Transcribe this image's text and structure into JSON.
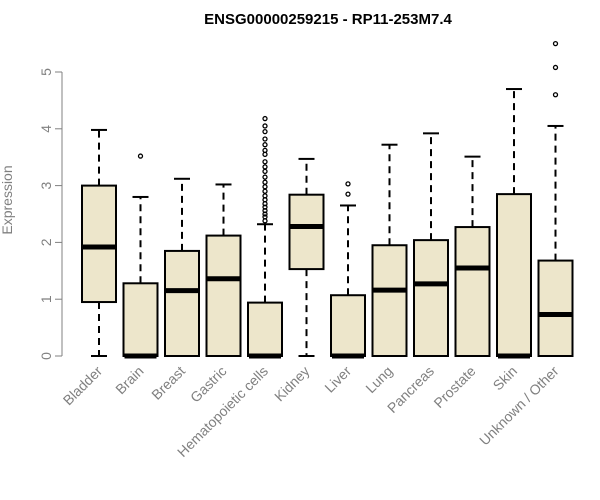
{
  "chart_data": {
    "type": "box",
    "title": "ENSG00000259215 - RP11-253M7.4",
    "xlabel": "",
    "ylabel": "Expression",
    "ylim": [
      0,
      5.5
    ],
    "yticks": [
      0,
      1,
      2,
      3,
      4,
      5
    ],
    "box_fill": "#ede6cb",
    "outline_color": "#000000",
    "axis_color": "#808080",
    "categories": [
      "Bladder",
      "Brain",
      "Breast",
      "Gastric",
      "Hematopoietic cells",
      "Kidney",
      "Liver",
      "Lung",
      "Pancreas",
      "Prostate",
      "Skin",
      "Unknown / Other"
    ],
    "boxes": [
      {
        "category": "Bladder",
        "whisker_low": 0,
        "q1": 0.95,
        "median": 1.92,
        "q3": 3.0,
        "whisker_high": 3.98,
        "outliers": []
      },
      {
        "category": "Brain",
        "whisker_low": 0,
        "q1": 0,
        "median": 0,
        "q3": 1.28,
        "whisker_high": 2.8,
        "outliers": [
          3.52
        ]
      },
      {
        "category": "Breast",
        "whisker_low": 0,
        "q1": 0,
        "median": 1.15,
        "q3": 1.85,
        "whisker_high": 3.12,
        "outliers": []
      },
      {
        "category": "Gastric",
        "whisker_low": 0,
        "q1": 0,
        "median": 1.36,
        "q3": 2.12,
        "whisker_high": 3.02,
        "outliers": []
      },
      {
        "category": "Hematopoietic cells",
        "whisker_low": 0,
        "q1": 0,
        "median": 0,
        "q3": 0.94,
        "whisker_high": 2.32,
        "outliers": [
          2.38,
          2.45,
          2.5,
          2.56,
          2.62,
          2.68,
          2.75,
          2.82,
          2.9,
          2.98,
          3.06,
          3.15,
          3.25,
          3.33,
          3.42,
          3.55,
          3.62,
          3.72,
          3.82,
          3.95,
          4.05,
          4.18
        ]
      },
      {
        "category": "Kidney",
        "whisker_low": 0,
        "q1": 1.53,
        "median": 2.28,
        "q3": 2.84,
        "whisker_high": 3.47,
        "outliers": []
      },
      {
        "category": "Liver",
        "whisker_low": 0,
        "q1": 0,
        "median": 0,
        "q3": 1.07,
        "whisker_high": 2.65,
        "outliers": [
          2.85,
          3.03
        ]
      },
      {
        "category": "Lung",
        "whisker_low": 0,
        "q1": 0,
        "median": 1.16,
        "q3": 1.95,
        "whisker_high": 3.72,
        "outliers": []
      },
      {
        "category": "Pancreas",
        "whisker_low": 0,
        "q1": 0,
        "median": 1.27,
        "q3": 2.04,
        "whisker_high": 3.92,
        "outliers": []
      },
      {
        "category": "Prostate",
        "whisker_low": 0,
        "q1": 0,
        "median": 1.55,
        "q3": 2.27,
        "whisker_high": 3.51,
        "outliers": []
      },
      {
        "category": "Skin",
        "whisker_low": 0,
        "q1": 0,
        "median": 0,
        "q3": 2.85,
        "whisker_high": 4.7,
        "outliers": []
      },
      {
        "category": "Unknown / Other",
        "whisker_low": 0,
        "q1": 0,
        "median": 0.73,
        "q3": 1.68,
        "whisker_high": 4.05,
        "outliers": [
          4.6,
          5.08,
          5.5
        ]
      }
    ]
  }
}
